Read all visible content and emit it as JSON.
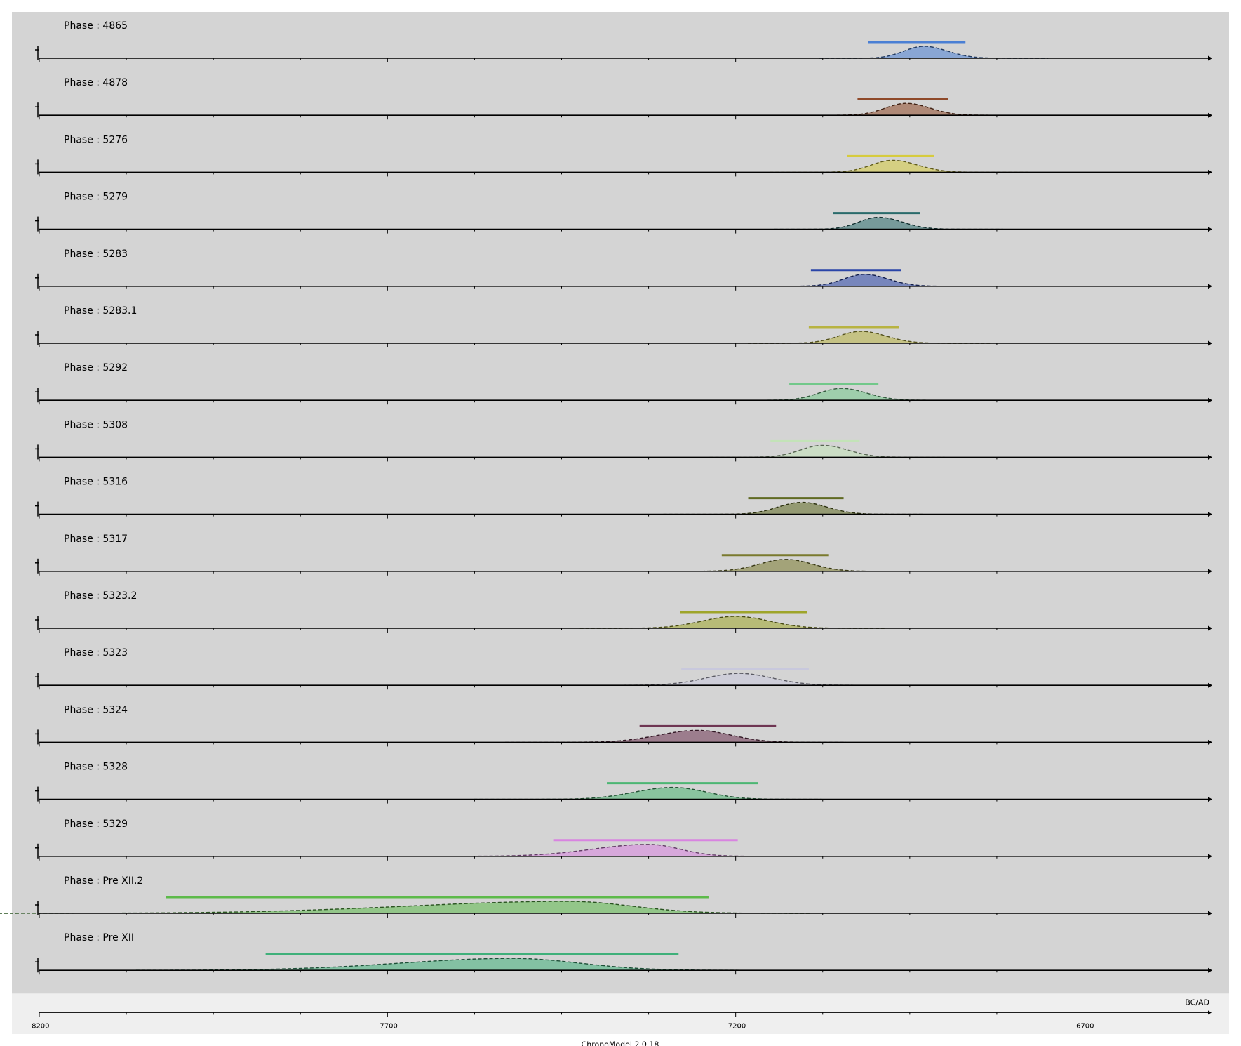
{
  "chart_data": {
    "type": "area",
    "software": "ChronoModel 2.0.18",
    "x_unit": "BC/AD",
    "xlim": [
      -8200,
      -6830
    ],
    "x_ticks": [
      -8200,
      -7700,
      -7200,
      -6700
    ],
    "grid": false,
    "series": [
      {
        "name": "Phase : 4865",
        "color": "#4a7fd4",
        "hpd": [
          -7010,
          -6870
        ],
        "mode": -6930,
        "sigma_left": 28,
        "sigma_right": 34,
        "tail_left": 60,
        "tail_right": 70
      },
      {
        "name": "Phase : 4878",
        "color": "#8f4a2a",
        "hpd": [
          -7025,
          -6895
        ],
        "mode": -6955,
        "sigma_left": 30,
        "sigma_right": 34,
        "tail_left": 60,
        "tail_right": 70
      },
      {
        "name": "Phase : 5276",
        "color": "#d6cb3e",
        "hpd": [
          -7040,
          -6915
        ],
        "mode": -6975,
        "sigma_left": 30,
        "sigma_right": 36,
        "tail_left": 80,
        "tail_right": 80
      },
      {
        "name": "Phase : 5279",
        "color": "#2a6b6b",
        "hpd": [
          -7060,
          -6935
        ],
        "mode": -6995,
        "sigma_left": 28,
        "sigma_right": 34,
        "tail_left": 60,
        "tail_right": 70
      },
      {
        "name": "Phase : 5283",
        "color": "#2a45a8",
        "hpd": [
          -7092,
          -6962
        ],
        "mode": -7015,
        "sigma_left": 30,
        "sigma_right": 34,
        "tail_left": 60,
        "tail_right": 70
      },
      {
        "name": "Phase : 5283.1",
        "color": "#b8b341",
        "hpd": [
          -7095,
          -6965
        ],
        "mode": -7020,
        "sigma_left": 32,
        "sigma_right": 36,
        "tail_left": 60,
        "tail_right": 70
      },
      {
        "name": "Phase : 5292",
        "color": "#72c88a",
        "hpd": [
          -7123,
          -6995
        ],
        "mode": -7048,
        "sigma_left": 32,
        "sigma_right": 36,
        "tail_left": 60,
        "tail_right": 70
      },
      {
        "name": "Phase : 5308",
        "color": "#c3e3b8",
        "hpd": [
          -7150,
          -7022
        ],
        "mode": -7075,
        "sigma_left": 32,
        "sigma_right": 36,
        "tail_left": 60,
        "tail_right": 60
      },
      {
        "name": "Phase : 5316",
        "color": "#5f6a22",
        "hpd": [
          -7182,
          -7045
        ],
        "mode": -7105,
        "sigma_left": 34,
        "sigma_right": 36,
        "tail_left": 90,
        "tail_right": 60
      },
      {
        "name": "Phase : 5317",
        "color": "#7a7a2e",
        "hpd": [
          -7220,
          -7067
        ],
        "mode": -7128,
        "sigma_left": 38,
        "sigma_right": 38,
        "tail_left": 80,
        "tail_right": 60
      },
      {
        "name": "Phase : 5323.2",
        "color": "#9ea52a",
        "hpd": [
          -7280,
          -7097
        ],
        "mode": -7200,
        "sigma_left": 48,
        "sigma_right": 48,
        "tail_left": 70,
        "tail_right": 60
      },
      {
        "name": "Phase : 5323",
        "color": "#c8c8dd",
        "hpd": [
          -7278,
          -7095
        ],
        "mode": -7195,
        "sigma_left": 48,
        "sigma_right": 48,
        "tail_left": 70,
        "tail_right": 60
      },
      {
        "name": "Phase : 5324",
        "color": "#6e3552",
        "hpd": [
          -7338,
          -7142
        ],
        "mode": -7255,
        "sigma_left": 55,
        "sigma_right": 48,
        "tail_left": 100,
        "tail_right": 60
      },
      {
        "name": "Phase : 5328",
        "color": "#4cb673",
        "hpd": [
          -7385,
          -7168
        ],
        "mode": -7290,
        "sigma_left": 55,
        "sigma_right": 48,
        "tail_left": 110,
        "tail_right": 60
      },
      {
        "name": "Phase : 5329",
        "color": "#d884e0",
        "hpd": [
          -7462,
          -7197
        ],
        "mode": -7325,
        "sigma_left": 80,
        "sigma_right": 45,
        "tail_left": 150,
        "tail_right": 50
      },
      {
        "name": "Phase : Pre XII.2",
        "color": "#5dba4a",
        "hpd": [
          -8018,
          -7239
        ],
        "mode": -7440,
        "sigma_left": 230,
        "sigma_right": 90,
        "tail_left": 300,
        "tail_right": 60
      },
      {
        "name": "Phase : Pre XII",
        "color": "#3fb07a",
        "hpd": [
          -7875,
          -7282
        ],
        "mode": -7520,
        "sigma_left": 160,
        "sigma_right": 95,
        "tail_left": 150,
        "tail_right": 60
      }
    ]
  }
}
